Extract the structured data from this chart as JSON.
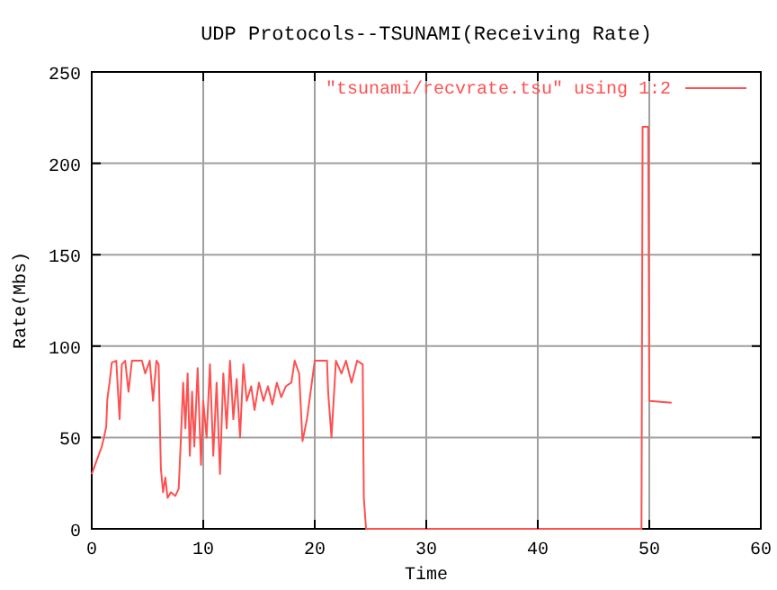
{
  "chart_data": {
    "type": "line",
    "title": "UDP Protocols--TSUNAMI(Receiving Rate)",
    "xlabel": "Time",
    "ylabel": "Rate(Mbs)",
    "xlim": [
      0,
      60
    ],
    "xticks": [
      0,
      10,
      20,
      30,
      40,
      50,
      60
    ],
    "ylim": [
      0,
      250
    ],
    "yticks": [
      0,
      50,
      100,
      150,
      200,
      250
    ],
    "grid": true,
    "legend": "top right",
    "series": [
      {
        "name": "\"tsunami/recvrate.tsu\" using 1:2",
        "color": "#ff5050",
        "x": [
          0,
          0.3,
          0.6,
          0.9,
          1.1,
          1.3,
          1.4,
          1.6,
          1.8,
          2.2,
          2.5,
          2.7,
          3.0,
          3.3,
          3.6,
          4.5,
          4.8,
          5.2,
          5.5,
          5.8,
          6.0,
          6.2,
          6.4,
          6.6,
          6.8,
          7.1,
          7.5,
          7.8,
          8.0,
          8.2,
          8.4,
          8.6,
          8.8,
          9.0,
          9.2,
          9.5,
          9.8,
          10.0,
          10.3,
          10.6,
          10.9,
          11.2,
          11.5,
          11.8,
          12.1,
          12.4,
          12.7,
          13.0,
          13.3,
          13.6,
          13.9,
          14.3,
          14.6,
          15.0,
          15.4,
          15.8,
          16.2,
          16.6,
          17.0,
          17.4,
          17.9,
          18.2,
          18.6,
          18.9,
          19.3,
          20.0,
          21.1,
          21.2,
          21.5,
          21.9,
          22.4,
          22.8,
          23.3,
          23.8,
          24.3,
          24.4,
          24.6,
          49.3,
          49.4,
          49.9,
          50.0,
          52
        ],
        "values": [
          30,
          35,
          40,
          45,
          50,
          56,
          71,
          80,
          91,
          92,
          60,
          90,
          92,
          75,
          92,
          92,
          85,
          92,
          70,
          92,
          90,
          33,
          20,
          28,
          17,
          20,
          18,
          22,
          50,
          80,
          55,
          85,
          40,
          75,
          45,
          88,
          35,
          70,
          50,
          90,
          40,
          80,
          30,
          85,
          55,
          92,
          60,
          82,
          50,
          90,
          70,
          78,
          65,
          80,
          70,
          78,
          68,
          80,
          72,
          78,
          80,
          92,
          85,
          48,
          60,
          92,
          92,
          75,
          50,
          92,
          85,
          92,
          80,
          92,
          90,
          17,
          0,
          0,
          220,
          220,
          70,
          69
        ]
      }
    ]
  }
}
